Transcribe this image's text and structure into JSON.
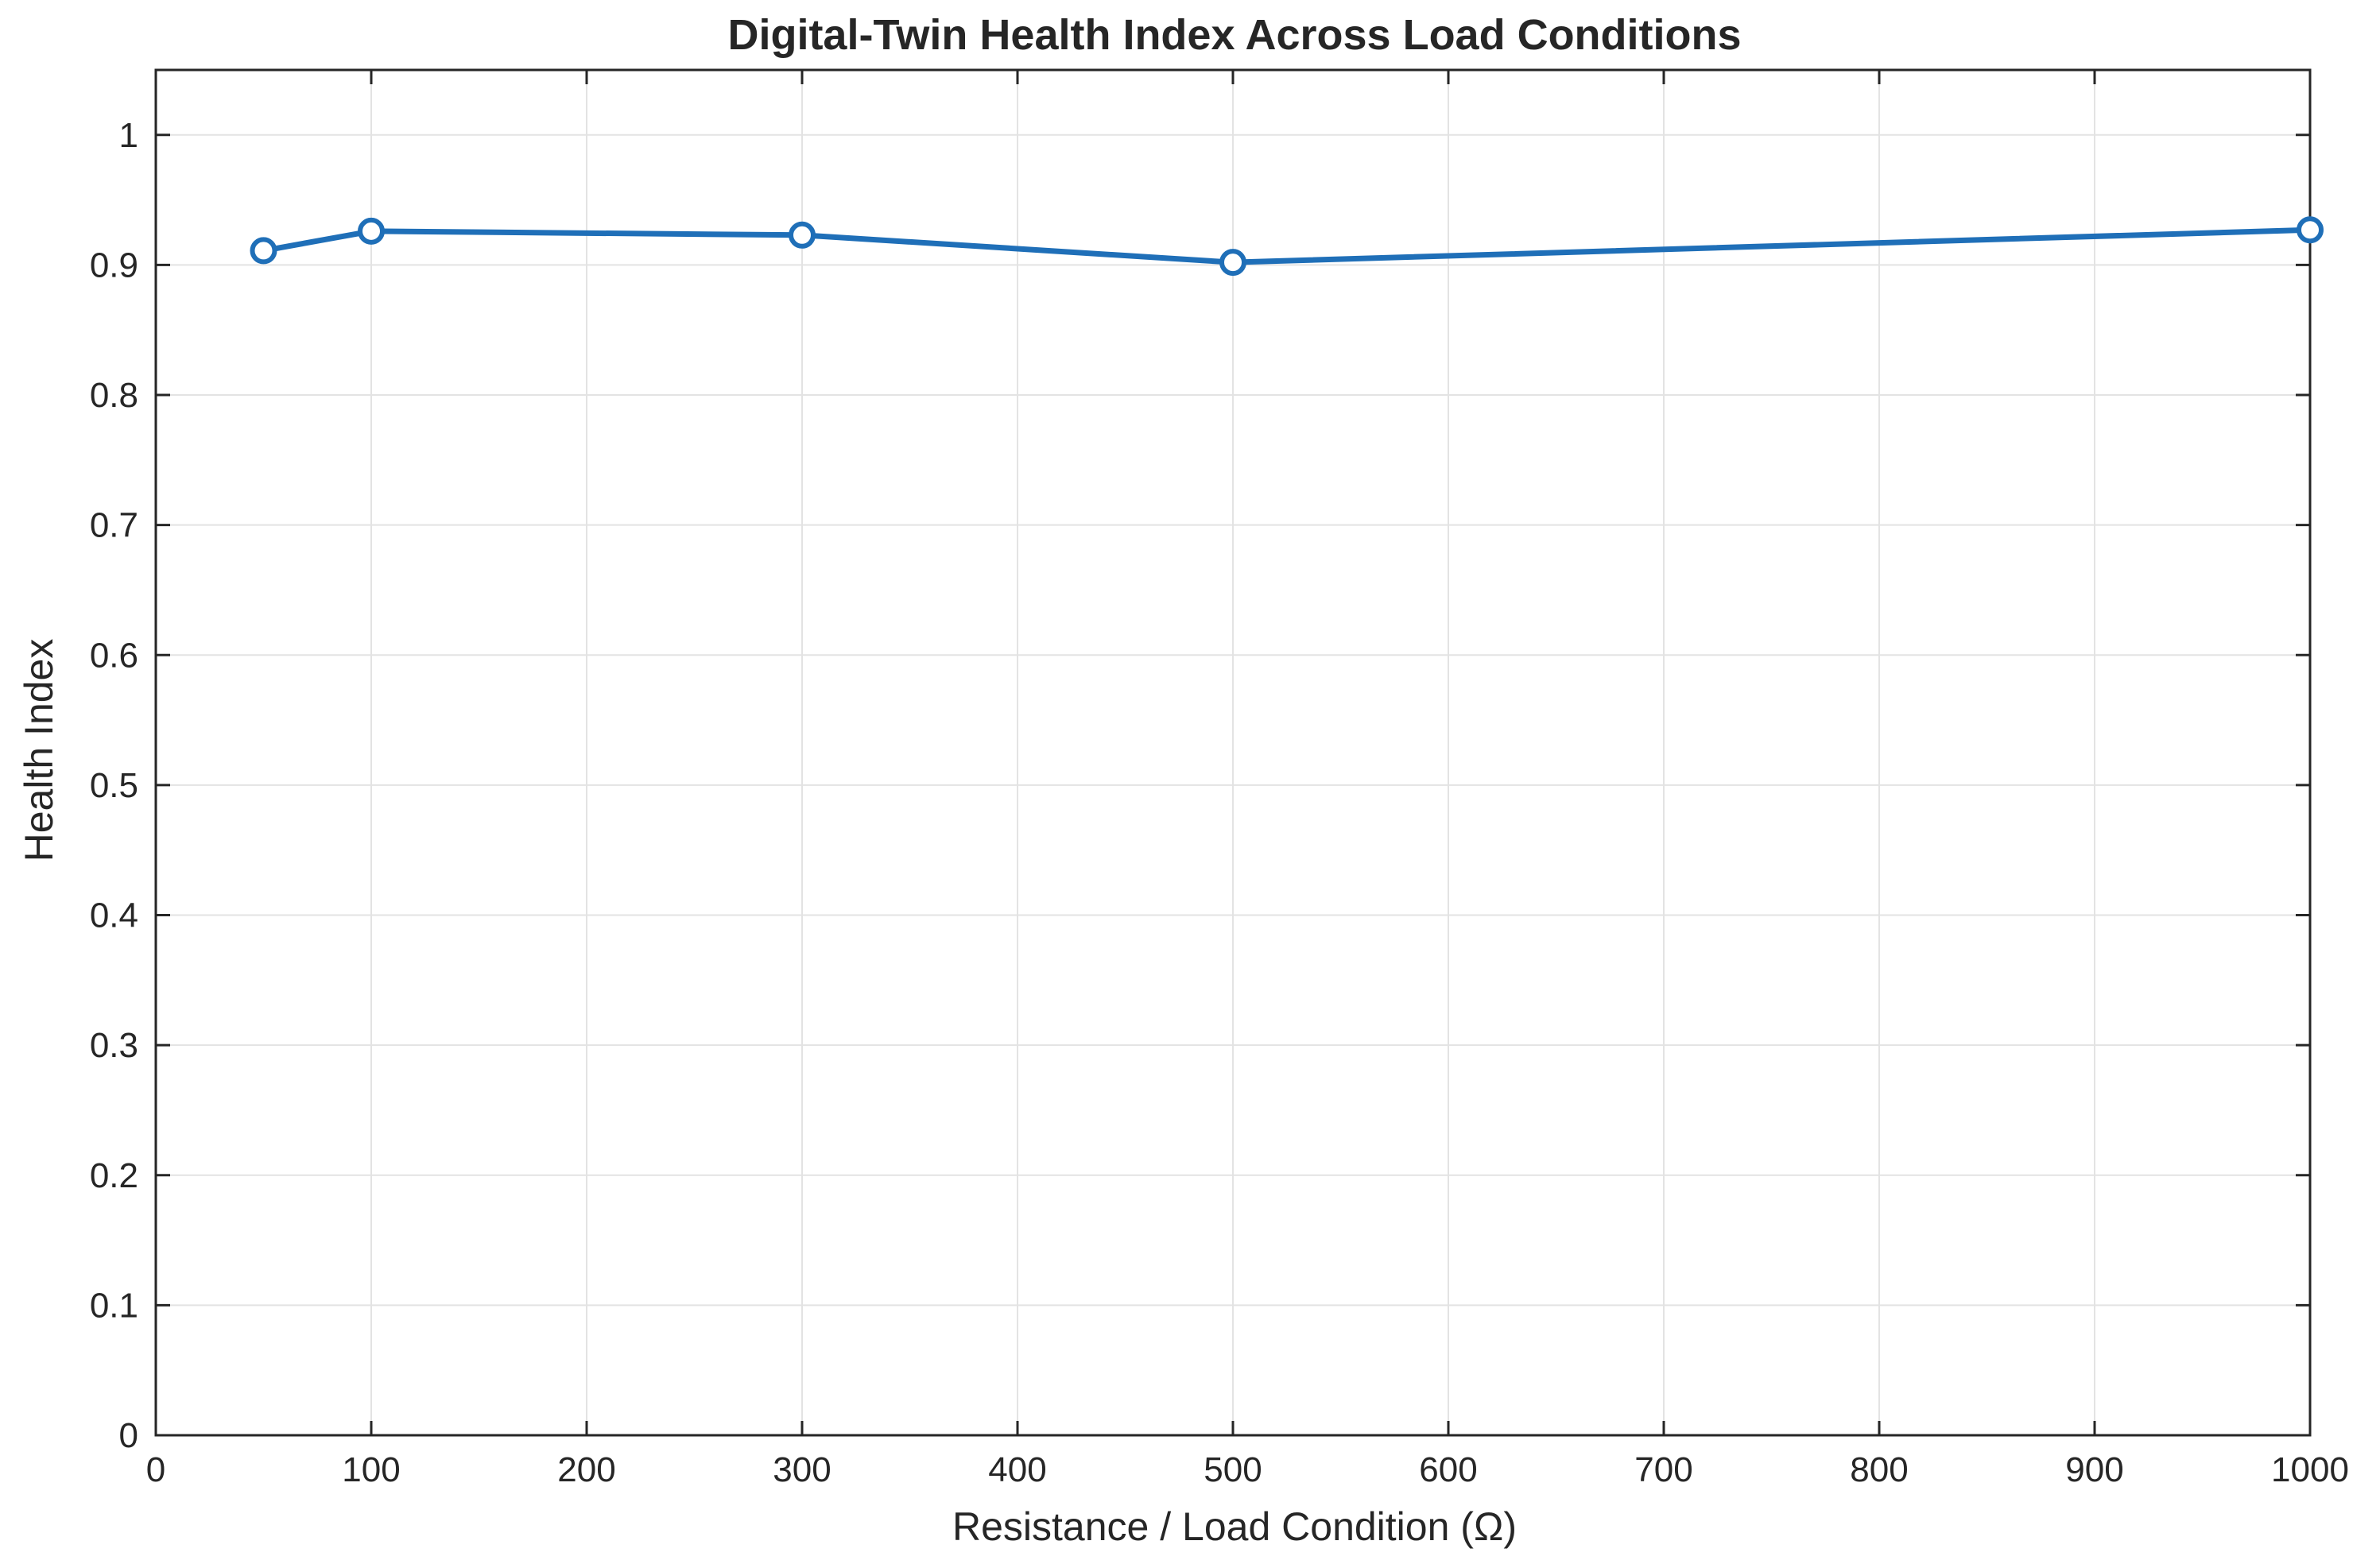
{
  "chart_data": {
    "type": "line",
    "title": "Digital-Twin Health Index Across Load Conditions",
    "xlabel": "Resistance  /  Load  Condition  (Ω)",
    "ylabel": "Health Index",
    "xlim": [
      0,
      1000
    ],
    "ylim": [
      0,
      1.05
    ],
    "xticks": [
      0,
      100,
      200,
      300,
      400,
      500,
      600,
      700,
      800,
      900,
      1000
    ],
    "yticks": [
      0,
      0.1,
      0.2,
      0.3,
      0.4,
      0.5,
      0.6,
      0.7,
      0.8,
      0.9,
      1
    ],
    "xtick_labels": [
      "0",
      "100",
      "200",
      "300",
      "400",
      "500",
      "600",
      "700",
      "800",
      "900",
      "1000"
    ],
    "ytick_labels": [
      "0",
      "0.1",
      "0.2",
      "0.3",
      "0.4",
      "0.5",
      "0.6",
      "0.7",
      "0.8",
      "0.9",
      "1"
    ],
    "grid": true,
    "series": [
      {
        "x": [
          50,
          100,
          300,
          500,
          1000
        ],
        "y": [
          0.911,
          0.926,
          0.923,
          0.902,
          0.927
        ],
        "color": "#1f6fb8",
        "marker": "circle"
      }
    ]
  }
}
